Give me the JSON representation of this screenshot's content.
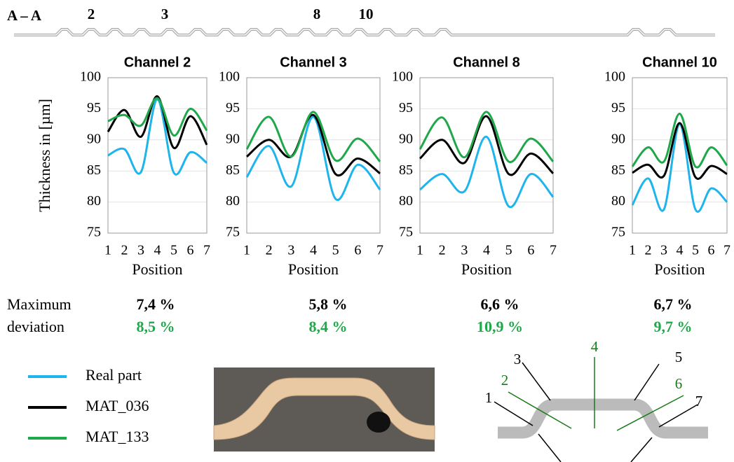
{
  "header": {
    "section": "A – A",
    "channels": [
      "2",
      "3",
      "8",
      "10"
    ]
  },
  "chart_data": [
    {
      "type": "line",
      "title": "Channel 2",
      "y_label": "Thickness in [µm]",
      "x_label": "Position",
      "x": [
        1,
        2,
        3,
        4,
        5,
        6,
        7
      ],
      "xlim": [
        1,
        7
      ],
      "xticks": [
        1,
        2,
        3,
        4,
        5,
        6,
        7
      ],
      "ylim": [
        75,
        100
      ],
      "yticks": [
        75,
        80,
        85,
        90,
        95,
        100
      ],
      "series": [
        {
          "name": "Real part",
          "color": "#1eb4ec",
          "values": [
            87.5,
            88.5,
            84.8,
            96.5,
            84.7,
            88,
            86.3
          ]
        },
        {
          "name": "MAT_036",
          "color": "#000000",
          "values": [
            91.3,
            94.8,
            90.5,
            97,
            88.7,
            93.8,
            89.2
          ]
        },
        {
          "name": "MAT_133",
          "color": "#1fa84a",
          "values": [
            93,
            94,
            92.3,
            96.7,
            90.7,
            95,
            91.5
          ]
        }
      ]
    },
    {
      "type": "line",
      "title": "Channel 3",
      "x_label": "Position",
      "x": [
        1,
        2,
        3,
        4,
        5,
        6,
        7
      ],
      "xlim": [
        1,
        7
      ],
      "xticks": [
        1,
        2,
        3,
        4,
        5,
        6,
        7
      ],
      "ylim": [
        75,
        100
      ],
      "yticks": [
        75,
        80,
        85,
        90,
        95,
        100
      ],
      "series": [
        {
          "color": "#1eb4ec",
          "values": [
            84,
            89,
            82.5,
            93.7,
            80.5,
            86,
            82
          ]
        },
        {
          "color": "#000000",
          "values": [
            87.3,
            90,
            87.3,
            94,
            84.5,
            87,
            84.6
          ]
        },
        {
          "color": "#1fa84a",
          "values": [
            88.5,
            93.7,
            87.3,
            94.5,
            86.7,
            90.2,
            86.5
          ]
        }
      ]
    },
    {
      "type": "line",
      "title": "Channel 8",
      "x_label": "Position",
      "x": [
        1,
        2,
        3,
        4,
        5,
        6,
        7
      ],
      "xlim": [
        1,
        7
      ],
      "xticks": [
        1,
        2,
        3,
        4,
        5,
        6,
        7
      ],
      "ylim": [
        75,
        100
      ],
      "yticks": [
        75,
        80,
        85,
        90,
        95,
        100
      ],
      "series": [
        {
          "color": "#1eb4ec",
          "values": [
            82,
            84.5,
            81.7,
            90.5,
            79.3,
            84.5,
            80.8
          ]
        },
        {
          "color": "#000000",
          "values": [
            87,
            90,
            86.3,
            93.8,
            84.5,
            87.8,
            84.6
          ]
        },
        {
          "color": "#1fa84a",
          "values": [
            88.5,
            93.6,
            87.2,
            94.5,
            86.5,
            90.2,
            86.5
          ]
        }
      ]
    },
    {
      "type": "line",
      "title": "Channel 10",
      "x_label": "Position",
      "x": [
        1,
        2,
        3,
        4,
        5,
        6,
        7
      ],
      "xlim": [
        1,
        7
      ],
      "xticks": [
        1,
        2,
        3,
        4,
        5,
        6,
        7
      ],
      "ylim": [
        75,
        100
      ],
      "yticks": [
        75,
        80,
        85,
        90,
        95,
        100
      ],
      "series": [
        {
          "color": "#1eb4ec",
          "values": [
            79.5,
            83.8,
            78.8,
            92.5,
            78.8,
            82.2,
            80
          ]
        },
        {
          "color": "#000000",
          "values": [
            84.7,
            86,
            84.2,
            92.7,
            84,
            85.8,
            84.5
          ]
        },
        {
          "color": "#1fa84a",
          "values": [
            85.7,
            88.8,
            86.5,
            94.2,
            85.7,
            88.8,
            85.9
          ]
        }
      ]
    }
  ],
  "deviation": {
    "label": [
      "Maximum",
      "deviation"
    ],
    "mat036": [
      "7,4 %",
      "5,8 %",
      "6,6 %",
      "6,7 %"
    ],
    "mat133": [
      "8,5 %",
      "8,4 %",
      "10,9 %",
      "9,7 %"
    ]
  },
  "diagram": {
    "positions": [
      "1",
      "2",
      "3",
      "4",
      "5",
      "6",
      "7"
    ]
  }
}
